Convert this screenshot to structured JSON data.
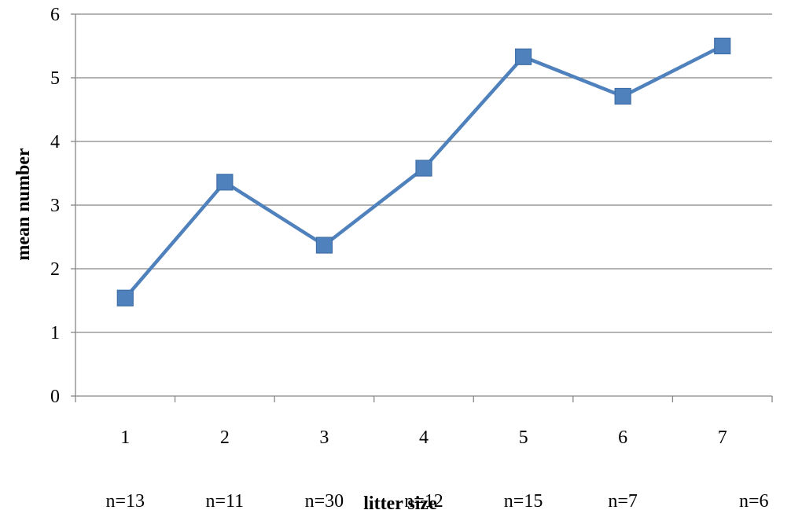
{
  "chart_data": {
    "type": "line",
    "title": "",
    "xlabel": "litter size",
    "ylabel": "mean number",
    "categories": [
      "1",
      "2",
      "3",
      "4",
      "5",
      "6",
      "7"
    ],
    "sample_sizes": [
      "n=13",
      "n=11",
      "n=30",
      "n=12",
      "n=15",
      "n=7",
      "n=6"
    ],
    "series": [
      {
        "values": [
          1.54,
          3.36,
          2.37,
          3.58,
          5.33,
          4.71,
          5.5
        ]
      }
    ],
    "ylim": [
      0,
      6
    ],
    "y_ticks": [
      "0",
      "1",
      "2",
      "3",
      "4",
      "5",
      "6"
    ],
    "grid": "horizontal",
    "legend": "none",
    "colors": {
      "series_line": "#4f81bd",
      "marker_fill": "#4f81bd",
      "gridline": "#868686",
      "axis": "#868686",
      "text": "#000000"
    }
  }
}
